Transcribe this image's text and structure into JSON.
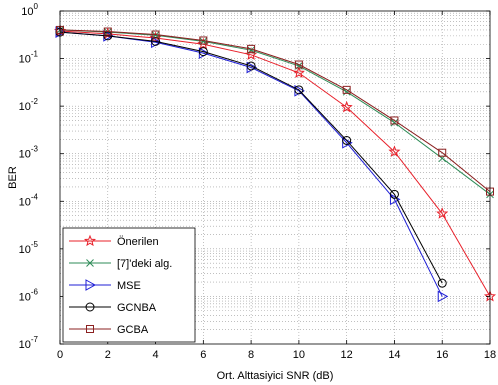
{
  "chart_data": {
    "type": "line",
    "xlabel": "Ort. Alttasiyici SNR (dB)",
    "ylabel": "BER",
    "xlim": [
      0,
      18
    ],
    "ylim": [
      1e-07,
      1
    ],
    "y_scale": "log",
    "grid": true,
    "legend_position": "bottom-left",
    "x_ticks": [
      0,
      2,
      4,
      6,
      8,
      10,
      12,
      14,
      16,
      18
    ],
    "x_tick_labels": [
      "0",
      "2",
      "4",
      "6",
      "8",
      "10",
      "12",
      "14",
      "16",
      "18"
    ],
    "y_ticks": [
      {
        "value": 1,
        "base": "10",
        "exp": "0"
      },
      {
        "value": 0.1,
        "base": "10",
        "exp": "-1"
      },
      {
        "value": 0.01,
        "base": "10",
        "exp": "-2"
      },
      {
        "value": 0.001,
        "base": "10",
        "exp": "-3"
      },
      {
        "value": 0.0001,
        "base": "10",
        "exp": "-4"
      },
      {
        "value": 1e-05,
        "base": "10",
        "exp": "-5"
      },
      {
        "value": 1e-06,
        "base": "10",
        "exp": "-6"
      },
      {
        "value": 1e-07,
        "base": "10",
        "exp": "-7"
      }
    ],
    "series": [
      {
        "name": "Önerilen",
        "color": "#e8202a",
        "marker": "star",
        "x": [
          0,
          2,
          4,
          6,
          8,
          10,
          12,
          14,
          16,
          18
        ],
        "y": [
          0.38,
          0.33,
          0.27,
          0.2,
          0.12,
          0.05,
          0.0095,
          0.0011,
          5.5e-05,
          1e-06
        ]
      },
      {
        "name": "[7]'deki alg.",
        "color": "#2e8b57",
        "marker": "x",
        "x": [
          0,
          2,
          4,
          6,
          8,
          10,
          12,
          14,
          16,
          18
        ],
        "y": [
          0.4,
          0.36,
          0.31,
          0.23,
          0.15,
          0.07,
          0.02,
          0.0045,
          0.0008,
          0.00014
        ]
      },
      {
        "name": "MSE",
        "color": "#1f1fd6",
        "marker": "triangle-right",
        "x": [
          0,
          2,
          4,
          6,
          8,
          10,
          12,
          14,
          16
        ],
        "y": [
          0.36,
          0.3,
          0.22,
          0.13,
          0.065,
          0.021,
          0.0017,
          0.00011,
          1e-06
        ]
      },
      {
        "name": "GCNBA",
        "color": "#000000",
        "marker": "circle",
        "x": [
          0,
          2,
          4,
          6,
          8,
          10,
          12,
          14,
          16
        ],
        "y": [
          0.36,
          0.3,
          0.23,
          0.14,
          0.07,
          0.022,
          0.0019,
          0.00014,
          1.9e-06
        ]
      },
      {
        "name": "GCBA",
        "color": "#8b2020",
        "marker": "square",
        "x": [
          0,
          2,
          4,
          6,
          8,
          10,
          12,
          14,
          16,
          18
        ],
        "y": [
          0.4,
          0.37,
          0.32,
          0.24,
          0.16,
          0.075,
          0.022,
          0.005,
          0.00105,
          0.00016
        ]
      }
    ]
  }
}
